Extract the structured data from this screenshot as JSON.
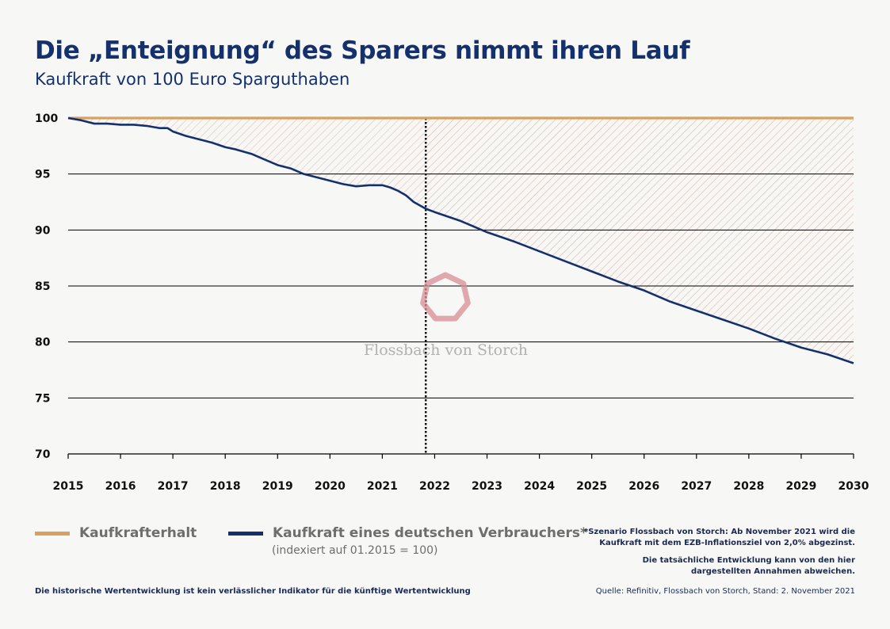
{
  "header": {
    "title": "Die „Enteignung“ des Sparers nimmt ihren Lauf",
    "subtitle": "Kaufkraft von 100 Euro Sparguthaben"
  },
  "colors": {
    "kaufkrafterhalt": "#d9a05e",
    "kaufkraft": "#14316d",
    "hatch": "#e3b4a4",
    "watermark": "#d88e93"
  },
  "watermark": {
    "text": "Flossbach von Storch",
    "icon": "heptagon-logo-icon"
  },
  "legend": {
    "items": [
      {
        "label": "Kaufkrafterhalt"
      },
      {
        "label": "Kaufkraft eines deutschen Verbrauchers*"
      }
    ],
    "note": "(indexiert auf 01.2015 = 100)"
  },
  "footnote": {
    "line1": "*Szenario Flossbach von Storch: Ab November 2021 wird die",
    "line2": "Kaufkraft mit dem EZB-Inflationsziel von 2,0% abgezinst.",
    "line3": "Die tatsächliche Entwicklung kann von den hier",
    "line4": "dargestellten Annahmen abweichen."
  },
  "disclaimer": "Die historische Wertentwicklung ist kein verlässlicher Indikator für die künftige Wertentwicklung",
  "source": "Quelle: Refinitiv, Flossbach von Storch, Stand: 2. November 2021",
  "chart_data": {
    "type": "line",
    "x_tick_labels": [
      "2015",
      "2016",
      "2017",
      "2018",
      "2019",
      "2020",
      "2021",
      "2022",
      "2023",
      "2024",
      "2025",
      "2026",
      "2027",
      "2028",
      "2029",
      "2030"
    ],
    "y_tick_labels": [
      "70",
      "75",
      "80",
      "85",
      "90",
      "95",
      "100"
    ],
    "xlim": [
      2015,
      2030
    ],
    "ylim": [
      70,
      100
    ],
    "y_gridlines": true,
    "forecast_start_year": 2021.83,
    "series": [
      {
        "name": "Kaufkrafterhalt",
        "x": [
          2015,
          2030
        ],
        "y": [
          100,
          100
        ]
      },
      {
        "name": "Kaufkraft eines deutschen Verbrauchers*",
        "x": [
          2015.0,
          2015.25,
          2015.5,
          2015.75,
          2016.0,
          2016.25,
          2016.5,
          2016.75,
          2016.9,
          2017.0,
          2017.25,
          2017.5,
          2017.75,
          2018.0,
          2018.2,
          2018.5,
          2018.75,
          2019.0,
          2019.25,
          2019.5,
          2019.75,
          2020.0,
          2020.25,
          2020.5,
          2020.75,
          2021.0,
          2021.15,
          2021.3,
          2021.45,
          2021.6,
          2021.83,
          2022.0,
          2022.25,
          2022.5,
          2022.75,
          2023.0,
          2023.5,
          2024.0,
          2024.5,
          2025.0,
          2025.5,
          2026.0,
          2026.5,
          2027.0,
          2027.5,
          2028.0,
          2028.5,
          2029.0,
          2029.5,
          2030.0
        ],
        "y": [
          100.0,
          99.8,
          99.5,
          99.5,
          99.4,
          99.4,
          99.3,
          99.1,
          99.1,
          98.8,
          98.4,
          98.1,
          97.8,
          97.4,
          97.2,
          96.8,
          96.3,
          95.8,
          95.5,
          95.0,
          94.7,
          94.4,
          94.1,
          93.9,
          94.0,
          94.0,
          93.8,
          93.5,
          93.1,
          92.5,
          91.9,
          91.6,
          91.2,
          90.8,
          90.3,
          89.8,
          89.0,
          88.1,
          87.2,
          86.3,
          85.4,
          84.6,
          83.6,
          82.8,
          82.0,
          81.2,
          80.3,
          79.5,
          78.9,
          78.1
        ]
      }
    ]
  }
}
